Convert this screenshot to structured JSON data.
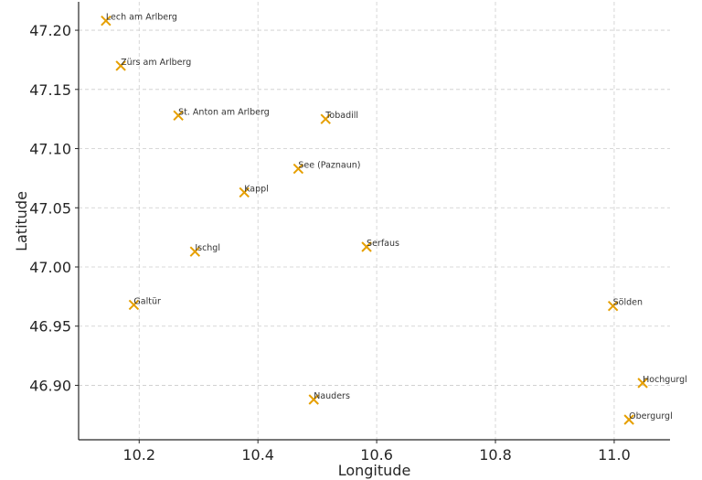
{
  "chart_data": {
    "type": "scatter",
    "title": "",
    "xlabel": "Longitude",
    "ylabel": "Latitude",
    "xlim": [
      10.098,
      11.094
    ],
    "ylim": [
      46.854,
      47.224
    ],
    "xticks": [
      10.2,
      10.4,
      10.6,
      10.8,
      11.0
    ],
    "xtick_labels": [
      "10.2",
      "10.4",
      "10.6",
      "10.8",
      "11.0"
    ],
    "yticks": [
      46.9,
      46.95,
      47.0,
      47.05,
      47.1,
      47.15,
      47.2
    ],
    "ytick_labels": [
      "46.90",
      "46.95",
      "47.00",
      "47.05",
      "47.10",
      "47.15",
      "47.20"
    ],
    "grid": true,
    "marker": "x",
    "marker_color": "#E69F00",
    "points": [
      {
        "label": "Lech am Arlberg",
        "x": 10.144,
        "y": 47.208
      },
      {
        "label": "Zürs am Arlberg",
        "x": 10.169,
        "y": 47.17
      },
      {
        "label": "St. Anton am Arlberg",
        "x": 10.266,
        "y": 47.128
      },
      {
        "label": "Tobadill",
        "x": 10.514,
        "y": 47.125
      },
      {
        "label": "See (Paznaun)",
        "x": 10.468,
        "y": 47.083
      },
      {
        "label": "Kappl",
        "x": 10.377,
        "y": 47.063
      },
      {
        "label": "Ischgl",
        "x": 10.294,
        "y": 47.013
      },
      {
        "label": "Serfaus",
        "x": 10.583,
        "y": 47.017
      },
      {
        "label": "Galtür",
        "x": 10.191,
        "y": 46.968
      },
      {
        "label": "Sölden",
        "x": 10.998,
        "y": 46.967
      },
      {
        "label": "Hochgurgl",
        "x": 11.048,
        "y": 46.902
      },
      {
        "label": "Obergurgl",
        "x": 11.025,
        "y": 46.871
      },
      {
        "label": "Nauders",
        "x": 10.494,
        "y": 46.888
      }
    ]
  }
}
